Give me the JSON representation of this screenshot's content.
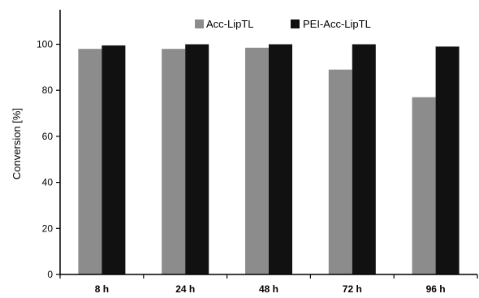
{
  "chart_data": {
    "type": "bar",
    "categories": [
      "8 h",
      "24 h",
      "48 h",
      "72 h",
      "96 h"
    ],
    "series": [
      {
        "name": "Acc-LipTL",
        "color": "#8c8c8c",
        "values": [
          98,
          98,
          98.5,
          89,
          77
        ]
      },
      {
        "name": "PEI-Acc-LipTL",
        "color": "#111111",
        "values": [
          99.5,
          100,
          100,
          100,
          99
        ]
      }
    ],
    "ylabel": "Conversion [%]",
    "xlabel": "",
    "ylim": [
      0,
      115
    ],
    "yticks": [
      0,
      20,
      40,
      60,
      80,
      100
    ],
    "grid": false,
    "legend_position": "top-right"
  }
}
